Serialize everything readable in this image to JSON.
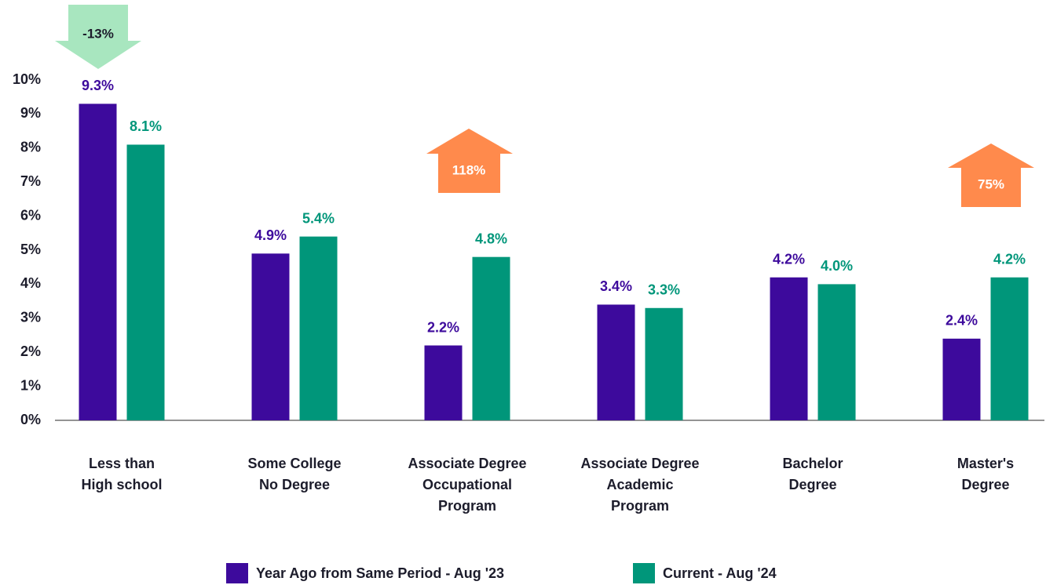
{
  "chart_data": {
    "type": "bar",
    "categories": [
      [
        "Less than",
        "High school"
      ],
      [
        "Some College",
        "No Degree"
      ],
      [
        "Associate Degree",
        "Occupational",
        "Program"
      ],
      [
        "Associate Degree",
        "Academic",
        "Program"
      ],
      [
        "Bachelor",
        "Degree"
      ],
      [
        "Master's",
        "Degree"
      ]
    ],
    "series": [
      {
        "name": "Year Ago from Same Period - Aug '23",
        "color": "#3d0a9c",
        "values": [
          9.3,
          4.9,
          2.2,
          3.4,
          4.2,
          2.4
        ],
        "value_labels": [
          "9.3%",
          "4.9%",
          "2.2%",
          "3.4%",
          "4.2%",
          "2.4%"
        ]
      },
      {
        "name": "Current - Aug '24",
        "color": "#00967a",
        "values": [
          8.1,
          5.4,
          4.8,
          3.3,
          4.0,
          4.2
        ],
        "value_labels": [
          "8.1%",
          "5.4%",
          "4.8%",
          "3.3%",
          "4.0%",
          "4.2%"
        ]
      }
    ],
    "ylim": [
      0,
      10
    ],
    "yticks": [
      {
        "value": 0,
        "label": "0%"
      },
      {
        "value": 1,
        "label": "1%"
      },
      {
        "value": 2,
        "label": "2%"
      },
      {
        "value": 3,
        "label": "3%"
      },
      {
        "value": 4,
        "label": "4%"
      },
      {
        "value": 5,
        "label": "5%"
      },
      {
        "value": 6,
        "label": "6%"
      },
      {
        "value": 7,
        "label": "7%"
      },
      {
        "value": 8,
        "label": "8%"
      },
      {
        "value": 9,
        "label": "9%"
      },
      {
        "value": 10,
        "label": "10%"
      }
    ],
    "grid": false,
    "annotations": [
      {
        "text": "-13%"
      },
      {
        "text": "118%"
      },
      {
        "text": "75%"
      }
    ]
  }
}
